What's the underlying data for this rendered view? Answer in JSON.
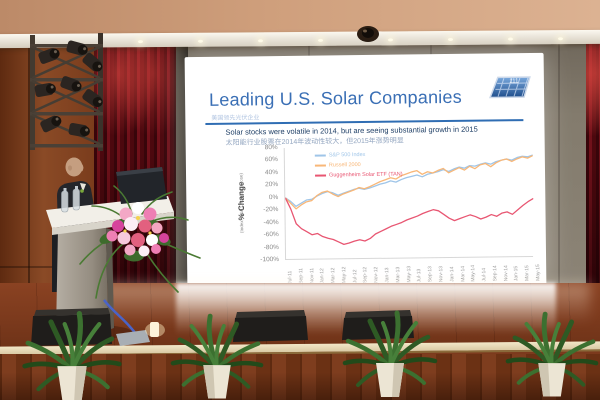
{
  "scene": {
    "setting": "conference-hall presentation, speaker at podium beside large projection screen"
  },
  "palette": {
    "ceiling": "#cf9f7c",
    "ledge": "#f6f1e6",
    "wall_grey": "#837b6d",
    "wood_wall": "#7e3f1e",
    "curtain": "#5a0a10",
    "floor": "#7c3a1d",
    "stage_trim": "#ecdfbe",
    "stage_front": "#6f3316",
    "screen": "#ffffff",
    "podium": "#a49c90",
    "slide_accent": "#2f6db3",
    "slide_text_dark": "#1f3f66",
    "slide_text_cn": "#93a6c0"
  },
  "slide": {
    "title": "Leading U.S. Solar Companies",
    "title_note_cn": "美国领先光伏企业",
    "subtitle_en": "Solar stocks were volatile in 2014, but are seeing substantial growth in 2015",
    "subtitle_cn": "太阳能行业股票在2014年波动性较大，但2015年涨势明显",
    "logo_label": "111"
  },
  "chart_data": {
    "type": "line",
    "title": "",
    "ylabel": "% Change",
    "ylabel_note": "(Index: 7/1/11 Adjusted Close)",
    "ylim": [
      -100,
      80
    ],
    "yticks": [
      "80%",
      "60%",
      "40%",
      "20%",
      "0%",
      "-20%",
      "-40%",
      "-60%",
      "-80%",
      "-100%"
    ],
    "x_labels": [
      "Jul-11",
      "Sep-11",
      "Nov-11",
      "Jan-12",
      "Mar-12",
      "May-12",
      "Jul-12",
      "Sep-12",
      "Nov-12",
      "Jan-13",
      "Mar-13",
      "May-13",
      "Jul-13",
      "Sep-13",
      "Nov-13",
      "Jan-14",
      "Mar-14",
      "May-14",
      "Jul-14",
      "Sep-14",
      "Nov-14",
      "Jan-15",
      "Mar-15",
      "May-15"
    ],
    "grid": false,
    "legend_position": "top-left-inside",
    "series": [
      {
        "name": "S&P 500 Index",
        "color": "#9fc5e8",
        "values": [
          0,
          -6,
          -14,
          -9,
          -4,
          -3,
          2,
          6,
          9,
          7,
          3,
          6,
          9,
          12,
          14,
          12,
          14,
          17,
          20,
          22,
          25,
          23,
          27,
          30,
          32,
          34,
          31,
          35,
          37,
          39,
          42,
          39,
          43,
          46,
          44,
          48,
          47,
          50,
          52,
          50,
          54,
          56,
          58,
          56,
          60,
          62,
          61,
          64
        ]
      },
      {
        "name": "Russell 2000",
        "color": "#f8b778",
        "values": [
          0,
          -9,
          -18,
          -12,
          -7,
          -5,
          3,
          8,
          10,
          5,
          1,
          5,
          8,
          11,
          15,
          13,
          16,
          20,
          24,
          27,
          30,
          28,
          33,
          36,
          39,
          41,
          35,
          39,
          37,
          41,
          44,
          37,
          41,
          45,
          41,
          47,
          43,
          49,
          51,
          46,
          52,
          56,
          58,
          54,
          58,
          61,
          59,
          63
        ]
      },
      {
        "name": "Guggenheim Solar ETF (TAN)",
        "color": "#e85672",
        "values": [
          0,
          -18,
          -42,
          -50,
          -55,
          -60,
          -58,
          -63,
          -66,
          -68,
          -72,
          -76,
          -74,
          -71,
          -69,
          -71,
          -67,
          -60,
          -56,
          -52,
          -48,
          -45,
          -42,
          -38,
          -35,
          -32,
          -28,
          -25,
          -22,
          -24,
          -30,
          -36,
          -40,
          -37,
          -34,
          -31,
          -34,
          -38,
          -35,
          -31,
          -34,
          -29,
          -27,
          -31,
          -24,
          -17,
          -11,
          -6
        ]
      }
    ]
  }
}
